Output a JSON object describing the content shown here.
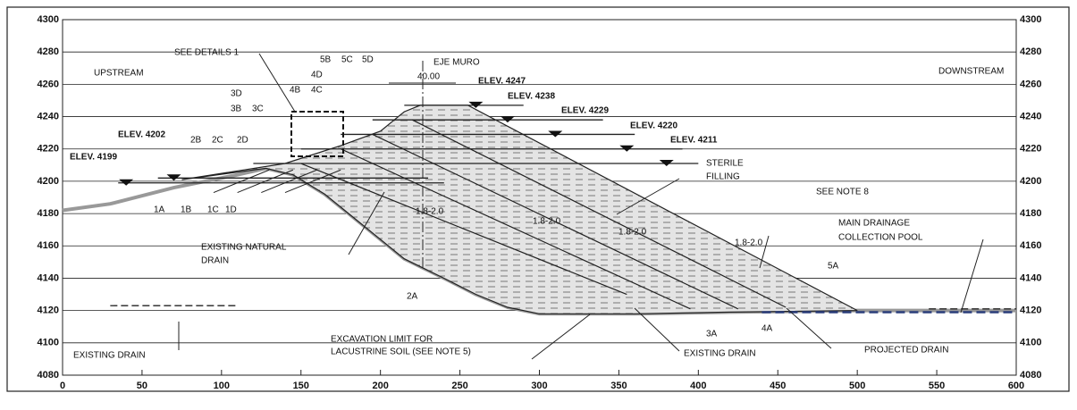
{
  "axes": {
    "xlim": [
      0,
      600
    ],
    "ylim": [
      4080,
      4300
    ],
    "xticks": [
      0,
      50,
      100,
      150,
      200,
      250,
      300,
      350,
      400,
      450,
      500,
      550,
      600
    ],
    "yticks": [
      4080,
      4100,
      4120,
      4140,
      4160,
      4180,
      4200,
      4220,
      4240,
      4260,
      4280,
      4300
    ]
  },
  "labels": [
    "UPSTREAM",
    "DOWNSTREAM",
    "SEE DETAILS 1",
    "EJE MURO",
    "40.00",
    "ELEV. 4247",
    "ELEV. 4238",
    "ELEV. 4229",
    "ELEV. 4220",
    "ELEV. 4211",
    "ELEV. 4202",
    "ELEV. 4199",
    "5B",
    "5C",
    "5D",
    "4D",
    "4B",
    "4C",
    "3D",
    "3B",
    "3C",
    "2B",
    "2C",
    "2D",
    "1A",
    "1B",
    "1C",
    "1D",
    "STERILE",
    "FILLING",
    "SEE NOTE 8",
    "MAIN DRAINAGE",
    "COLLECTION POOL",
    "1.8-2.0",
    "1.8-2.0",
    "1.8-2.0",
    "1.8-2.0",
    "2A",
    "3A",
    "4A",
    "5A",
    "EXISTING NATURAL",
    "DRAIN",
    "EXISTING DRAIN",
    "EXCAVATION LIMIT FOR",
    "LACUSTRINE SOIL (SEE NOTE 5)",
    "EXISTING DRAIN",
    "PROJECTED DRAIN"
  ]
}
